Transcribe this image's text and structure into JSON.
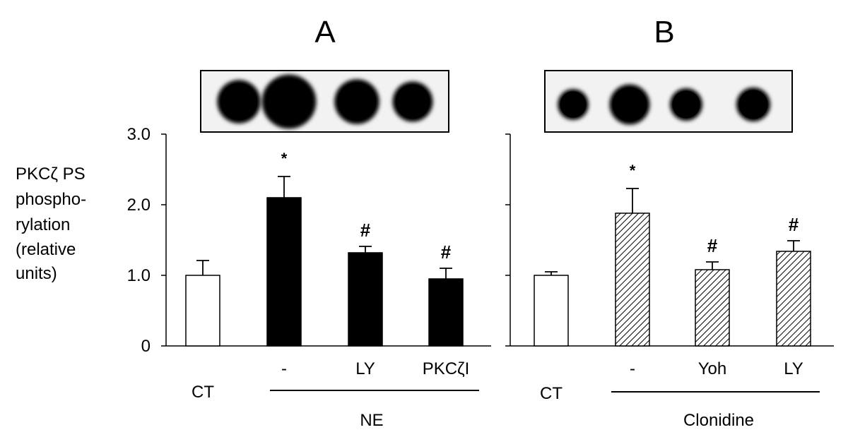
{
  "chart_data": [
    {
      "type": "bar",
      "panel_label": "A",
      "categories": [
        "CT",
        "-",
        "LY",
        "PKCζI"
      ],
      "values": [
        1.0,
        2.1,
        1.32,
        0.95
      ],
      "errors": [
        0.21,
        0.3,
        0.09,
        0.15
      ],
      "markers": [
        "",
        "*",
        "#",
        "#"
      ],
      "bar_styles": [
        "open",
        "solid",
        "solid",
        "solid"
      ],
      "group_label": "NE",
      "group_start": 1,
      "ylim": [
        0,
        3.0
      ],
      "yticks": [
        {
          "value": 0,
          "label": "0"
        },
        {
          "value": 1.0,
          "label": "1.0"
        },
        {
          "value": 2.0,
          "label": "2.0"
        },
        {
          "value": 3.0,
          "label": "3.0"
        }
      ],
      "ylabel_lines": [
        "PKCζ PS",
        "phospho-",
        "rylation",
        "(relative",
        "units)"
      ],
      "blot_spot_intensity": [
        0.85,
        1.2,
        0.9,
        0.75
      ]
    },
    {
      "type": "bar",
      "panel_label": "B",
      "categories": [
        "CT",
        "-",
        "Yoh",
        "LY"
      ],
      "values": [
        1.0,
        1.88,
        1.08,
        1.34
      ],
      "errors": [
        0.05,
        0.35,
        0.11,
        0.15
      ],
      "markers": [
        "",
        "*",
        "#",
        "#"
      ],
      "bar_styles": [
        "open",
        "hatched",
        "hatched",
        "hatched"
      ],
      "group_label": "Clonidine",
      "group_start": 1,
      "ylim": [
        0,
        3.0
      ],
      "blot_spot_intensity": [
        0.45,
        0.75,
        0.5,
        0.55
      ]
    }
  ],
  "colors": {
    "ink": "#000000",
    "blot_bg": "#f2f2f2",
    "paper": "#ffffff"
  }
}
